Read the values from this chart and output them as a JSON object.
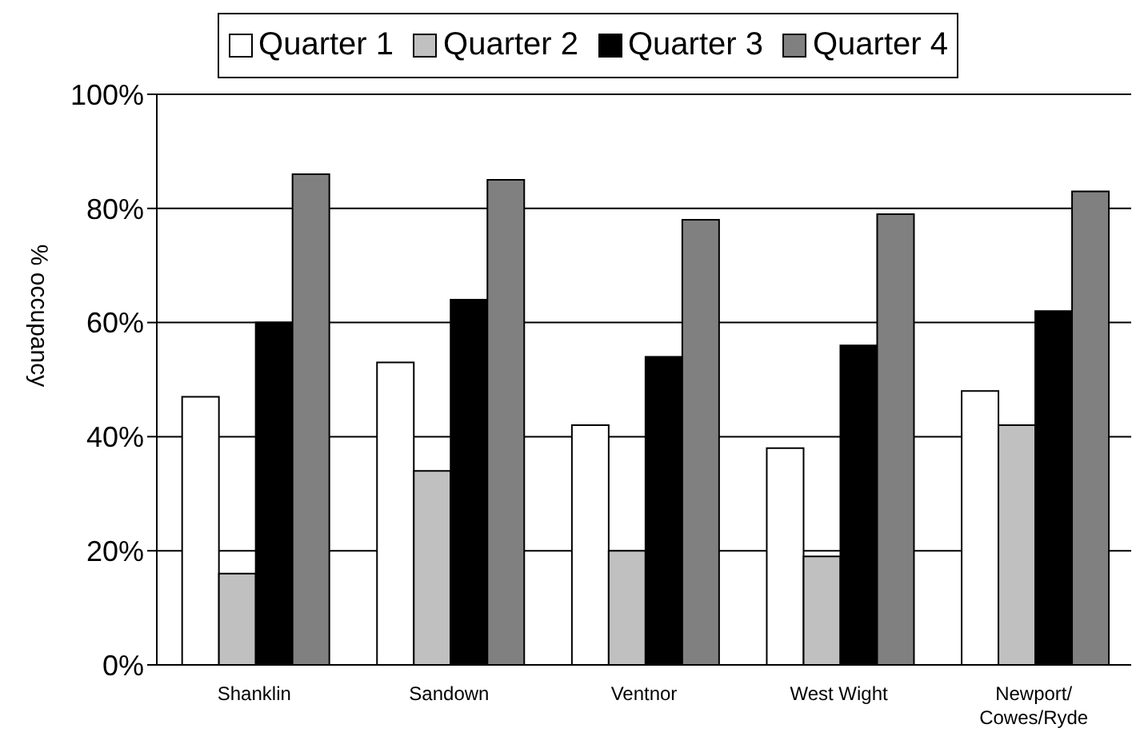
{
  "chart_data": {
    "type": "bar",
    "ylabel": "% occupancy",
    "categories": [
      "Shanklin",
      "Sandown",
      "Ventnor",
      "West Wight",
      "Newport/Cowes/Ryde"
    ],
    "series": [
      {
        "name": "Quarter 1",
        "color": "#ffffff",
        "values": [
          47,
          53,
          42,
          38,
          48
        ]
      },
      {
        "name": "Quarter 2",
        "color": "#c0c0c0",
        "values": [
          16,
          34,
          20,
          19,
          42
        ]
      },
      {
        "name": "Quarter 3",
        "color": "#000000",
        "values": [
          60,
          64,
          54,
          56,
          62
        ]
      },
      {
        "name": "Quarter 4",
        "color": "#808080",
        "values": [
          86,
          85,
          78,
          79,
          83
        ]
      }
    ],
    "ylim": [
      0,
      100
    ],
    "yticks": [
      {
        "value": 0,
        "label": "0%"
      },
      {
        "value": 20,
        "label": "20%"
      },
      {
        "value": 40,
        "label": "40%"
      },
      {
        "value": 60,
        "label": "60%"
      },
      {
        "value": 80,
        "label": "80%"
      },
      {
        "value": 100,
        "label": "100%"
      }
    ],
    "grid": "y",
    "legend": "top"
  }
}
